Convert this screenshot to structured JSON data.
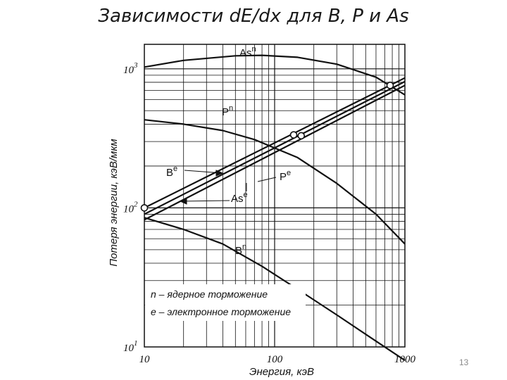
{
  "slide": {
    "title": "Зависимости dE/dx для B, P и As",
    "page_number": "13"
  },
  "chart_data": {
    "type": "line",
    "x_scale": "log",
    "y_scale": "log",
    "xlim": [
      10,
      1000
    ],
    "ylim": [
      10,
      1500
    ],
    "xlabel": "Энергия, кэВ",
    "ylabel": "Потеря энергии, кэВ/мкм",
    "x_ticks": [
      {
        "value": 10,
        "label": "10"
      },
      {
        "value": 100,
        "label": "100"
      },
      {
        "value": 1000,
        "label": "1000"
      }
    ],
    "y_ticks": [
      {
        "value": 10,
        "base": "10",
        "exp": "1"
      },
      {
        "value": 100,
        "base": "10",
        "exp": "2"
      },
      {
        "value": 1000,
        "base": "10",
        "exp": "3"
      }
    ],
    "grid": true,
    "series": [
      {
        "key": "As_n",
        "name": "As",
        "sup": "n",
        "color": "#111111",
        "x": [
          10,
          20,
          50,
          80,
          150,
          300,
          600,
          1000
        ],
        "y": [
          1030,
          1150,
          1240,
          1250,
          1210,
          1080,
          870,
          650
        ]
      },
      {
        "key": "P_n",
        "name": "P",
        "sup": "n",
        "color": "#111111",
        "x": [
          10,
          20,
          40,
          70,
          150,
          300,
          600,
          1000
        ],
        "y": [
          430,
          400,
          360,
          310,
          230,
          150,
          90,
          55
        ]
      },
      {
        "key": "B_n",
        "name": "B",
        "sup": "n",
        "color": "#111111",
        "x": [
          10,
          20,
          40,
          80,
          150,
          300,
          600,
          1000
        ],
        "y": [
          85,
          70,
          55,
          38,
          26,
          17,
          11,
          8
        ]
      },
      {
        "key": "B_e",
        "name": "B",
        "sup": "e",
        "color": "#111111",
        "x": [
          10,
          1000
        ],
        "y": [
          100,
          860
        ]
      },
      {
        "key": "P_e",
        "name": "P",
        "sup": "e",
        "color": "#111111",
        "x": [
          10,
          1000
        ],
        "y": [
          90,
          810
        ]
      },
      {
        "key": "As_e",
        "name": "As",
        "sup": "e",
        "color": "#111111",
        "x": [
          10,
          1000
        ],
        "y": [
          82,
          760
        ]
      }
    ],
    "crossing_points": [
      {
        "x": 10,
        "y": 100
      },
      {
        "x": 140,
        "y": 335
      },
      {
        "x": 160,
        "y": 330
      },
      {
        "x": 770,
        "y": 760
      }
    ],
    "legend": [
      {
        "symbol": "n",
        "text": "ядерное торможение"
      },
      {
        "symbol": "e",
        "text": "электронное торможение"
      }
    ]
  }
}
